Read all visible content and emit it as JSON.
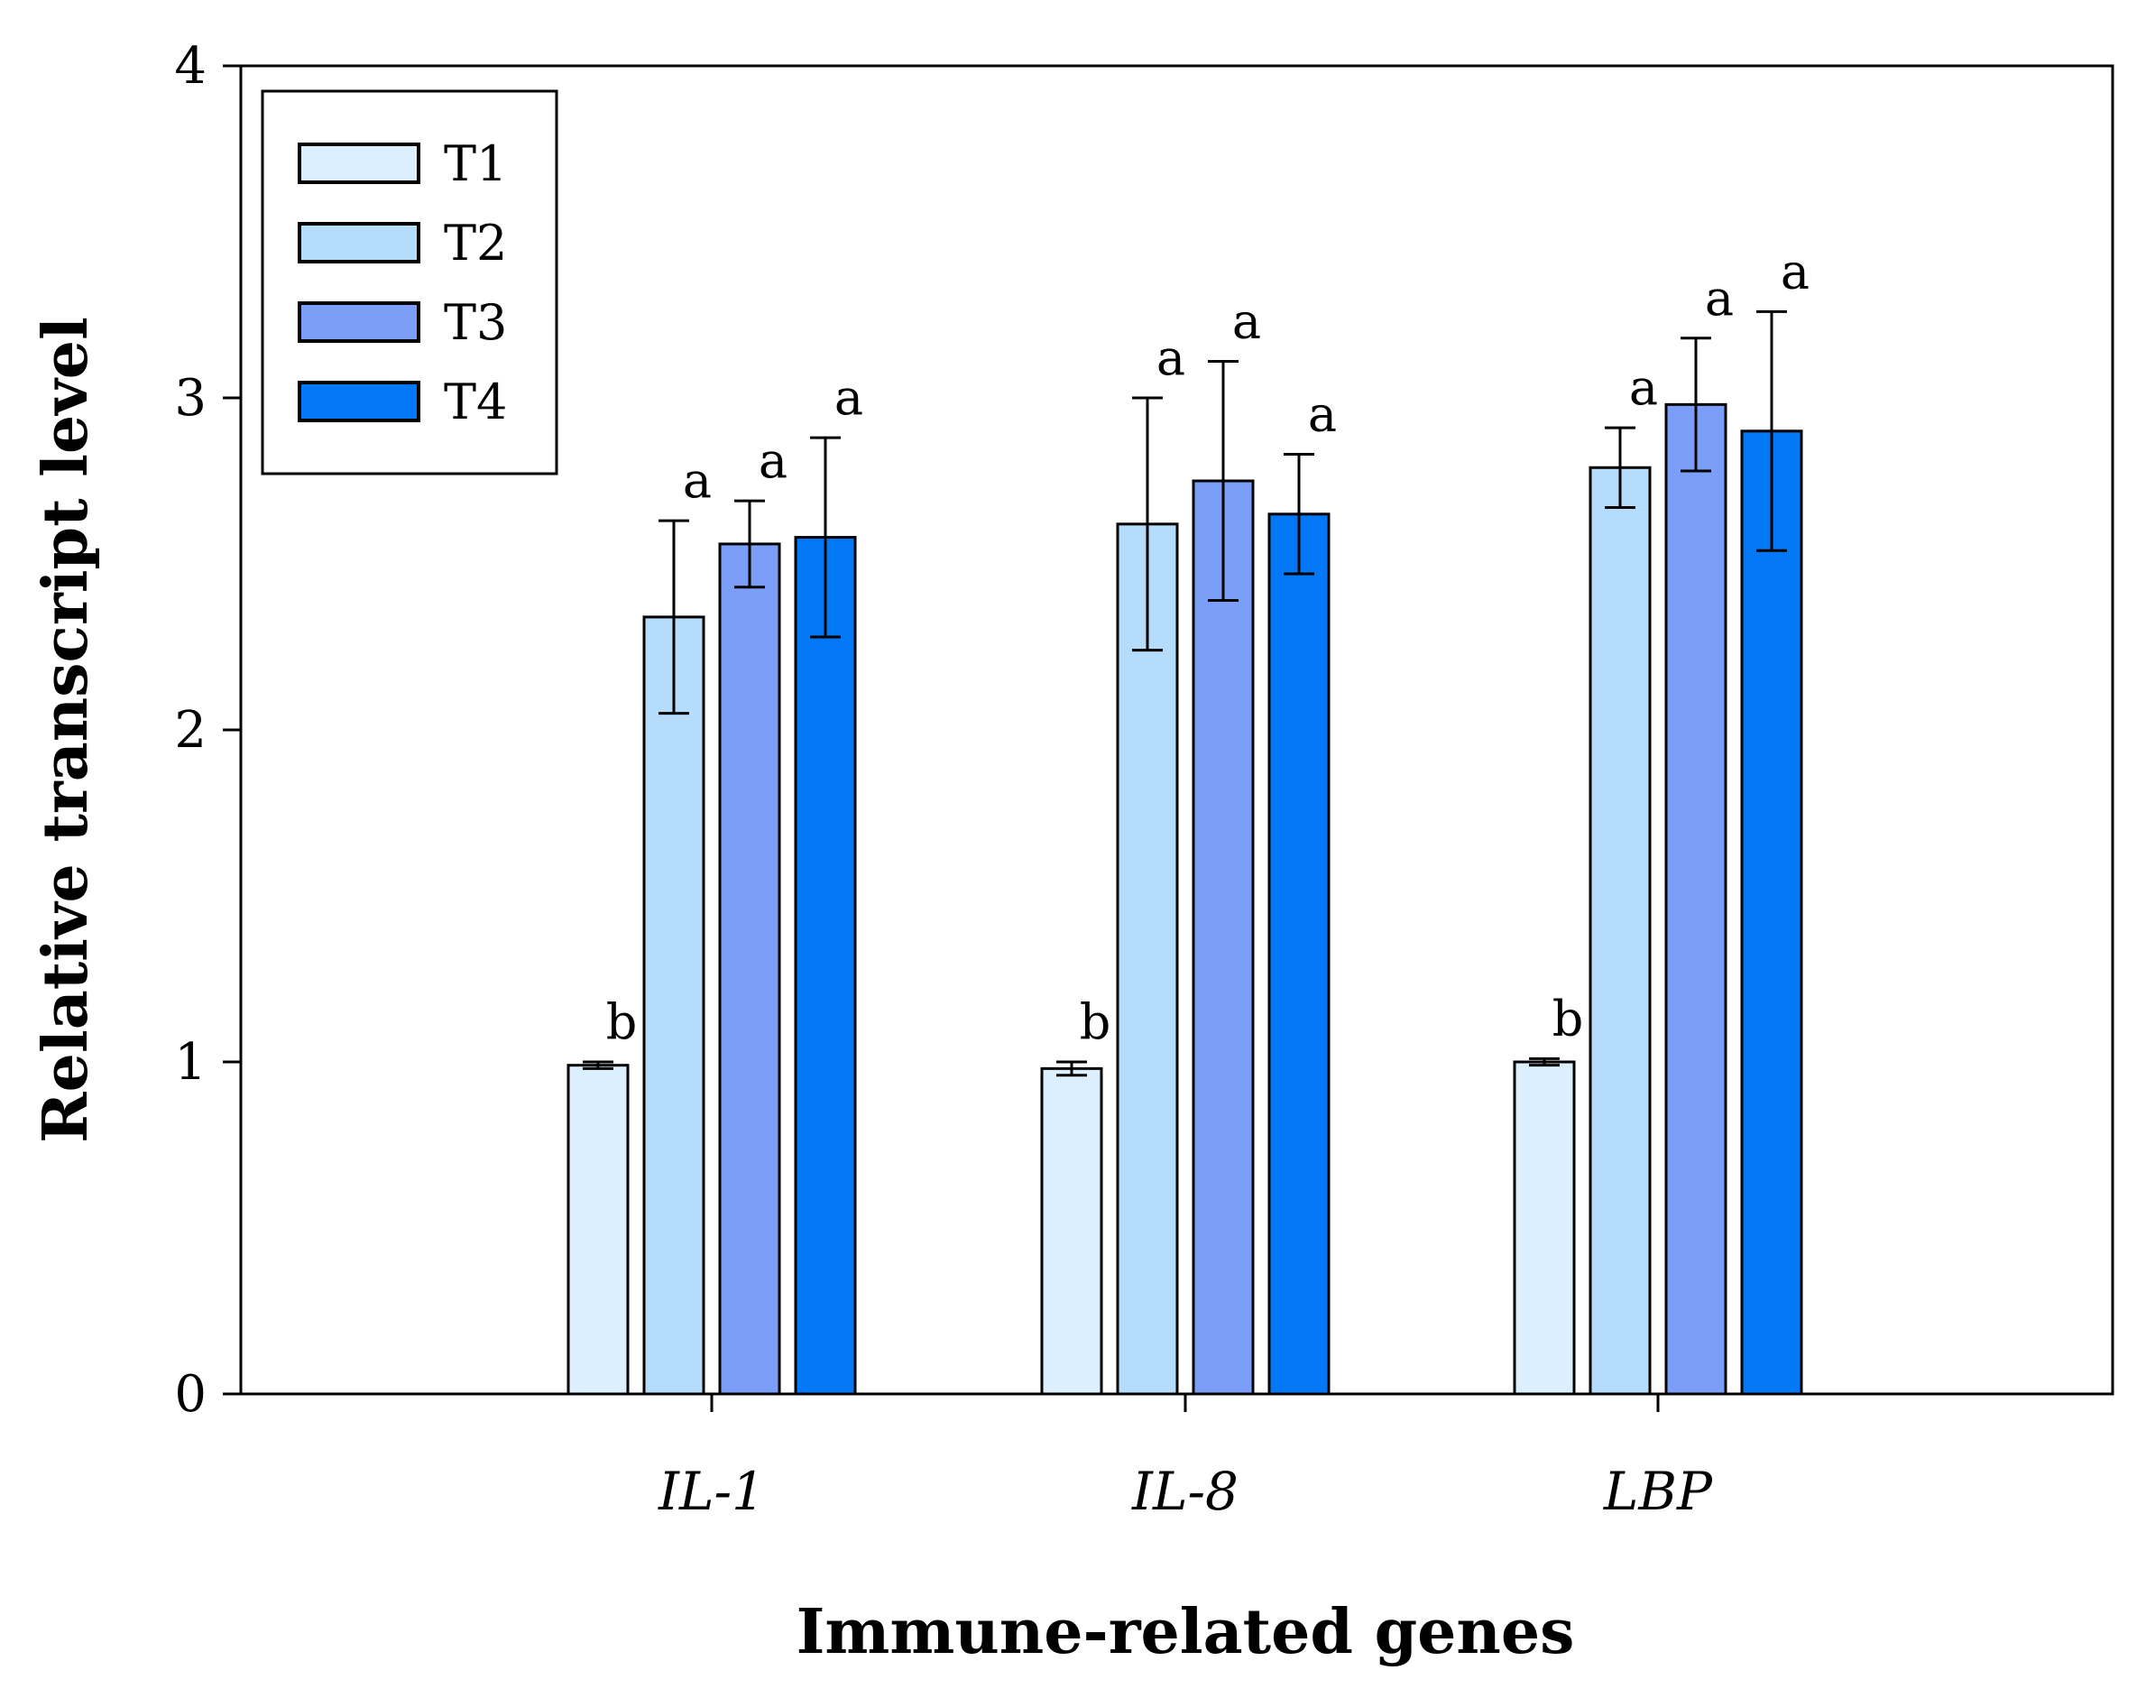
{
  "chart_data": {
    "type": "bar",
    "xlabel": "Immune-related genes",
    "ylabel": "Relative transcript level",
    "ylim": [
      0,
      4
    ],
    "yticks": [
      0,
      1,
      2,
      3,
      4
    ],
    "grid": false,
    "legend_position": "top-left",
    "categories": [
      "IL-1",
      "IL-8",
      "LBP"
    ],
    "series": [
      {
        "name": "T1",
        "color": "#dcefff",
        "values": [
          0.99,
          0.98,
          1.0
        ],
        "errors": [
          0.01,
          0.02,
          0.01
        ],
        "labels": [
          "b",
          "b",
          "b"
        ]
      },
      {
        "name": "T2",
        "color": "#b5dcfb",
        "values": [
          2.34,
          2.62,
          2.79
        ],
        "errors": [
          0.29,
          0.38,
          0.12
        ],
        "labels": [
          "a",
          "a",
          "a"
        ]
      },
      {
        "name": "T3",
        "color": "#7b9ff9",
        "values": [
          2.56,
          2.75,
          2.98
        ],
        "errors": [
          0.13,
          0.36,
          0.2
        ],
        "labels": [
          "a",
          "a",
          "a"
        ]
      },
      {
        "name": "T4",
        "color": "#0278f6",
        "values": [
          2.58,
          2.65,
          2.9
        ],
        "errors": [
          0.3,
          0.18,
          0.36
        ],
        "labels": [
          "a",
          "a",
          "a"
        ]
      }
    ]
  }
}
